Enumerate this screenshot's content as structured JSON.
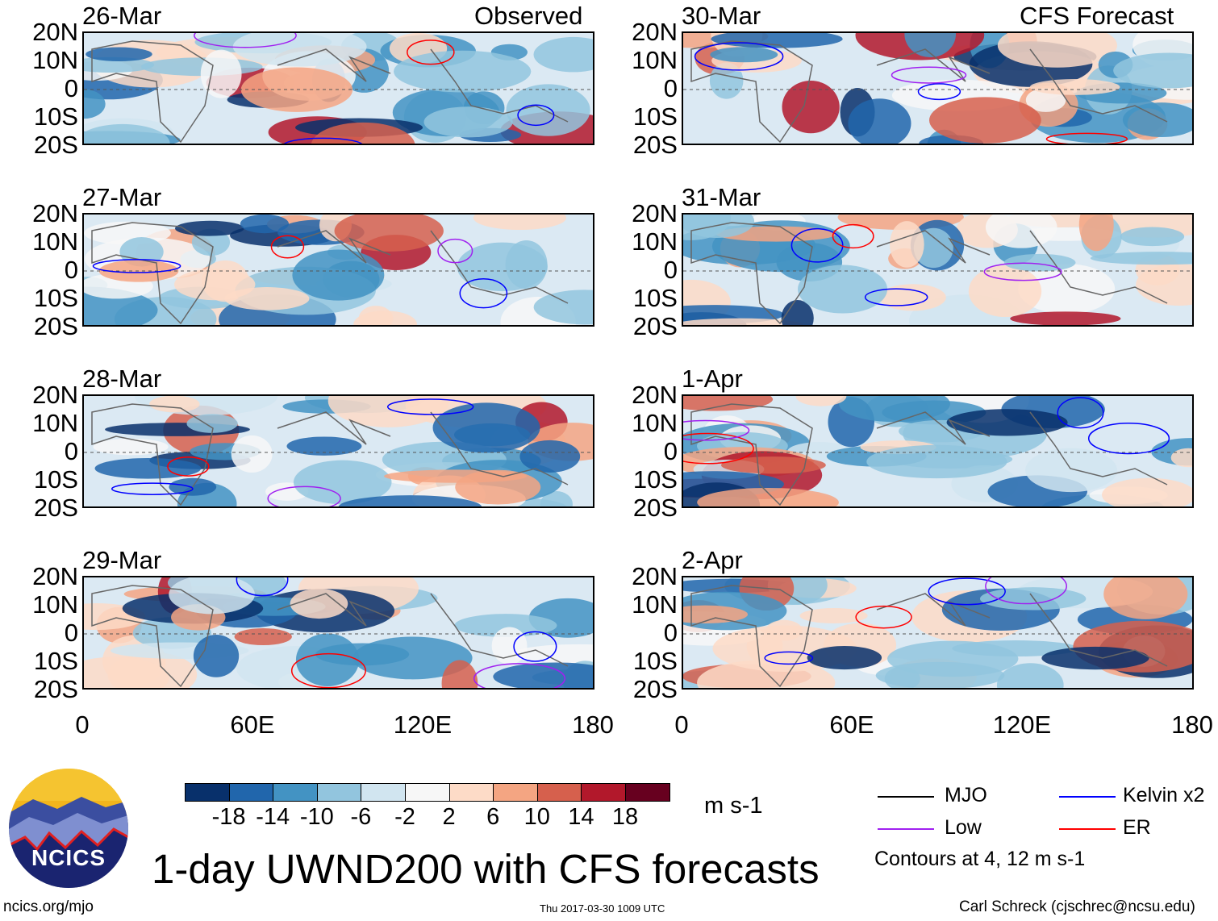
{
  "left_column": {
    "header_right": "Observed",
    "panels": [
      "26-Mar",
      "27-Mar",
      "28-Mar",
      "29-Mar"
    ]
  },
  "right_column": {
    "header_right": "CFS Forecast",
    "panels": [
      "30-Mar",
      "31-Mar",
      "1-Apr",
      "2-Apr"
    ]
  },
  "lat_labels": [
    "20N",
    "10N",
    "0",
    "10S",
    "20S"
  ],
  "lon_labels": [
    "0",
    "60E",
    "120E",
    "180"
  ],
  "colorbar": {
    "colors": [
      "#08306b",
      "#2166ac",
      "#4393c3",
      "#92c5de",
      "#d1e5f0",
      "#f7f7f7",
      "#fddbc7",
      "#f4a582",
      "#d6604d",
      "#b2182b",
      "#67001f"
    ],
    "labels": [
      "-18",
      "-14",
      "-10",
      "-6",
      "-2",
      "2",
      "6",
      "10",
      "14",
      "18"
    ],
    "units": "m s-1"
  },
  "legend": {
    "items": [
      {
        "label": "MJO",
        "color": "#000000"
      },
      {
        "label": "Kelvin x2",
        "color": "#0000ff"
      },
      {
        "label": "Low",
        "color": "#a020f0"
      },
      {
        "label": "ER",
        "color": "#ff0000"
      }
    ],
    "note": "Contours at 4, 12 m s-1"
  },
  "logo_text": "NCICS",
  "title": "1-day UWND200 with CFS forecasts",
  "footer": {
    "left": "ncics.org/mjo",
    "center": "Thu 2017-03-30 1009 UTC",
    "right": "Carl Schreck (cjschrec@ncsu.edu)"
  }
}
